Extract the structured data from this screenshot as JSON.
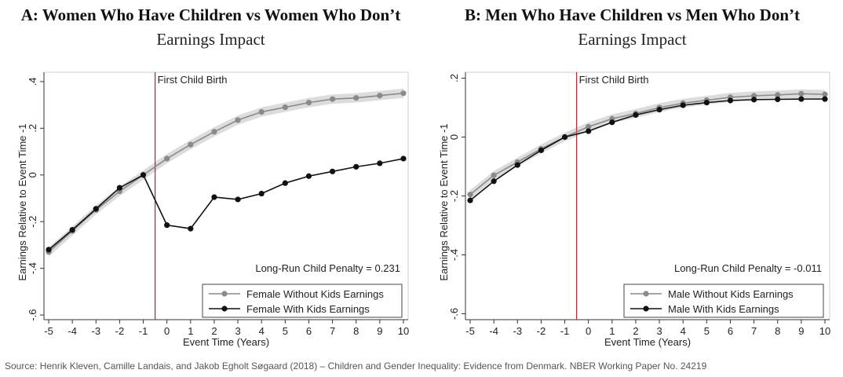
{
  "source_line": "Source: Henrik Kleven, Camille Landais, and Jakob Egholt Søgaard (2018) – Children and Gender Inequality: Evidence from Denmark. NBER Working Paper No. 24219",
  "chart_data": [
    {
      "type": "line",
      "title": "A: Women Who Have Children vs Women Who Don’t",
      "subtitle": "Earnings Impact",
      "xlabel": "Event Time (Years)",
      "ylabel": "Earnings Relative to Event Time -1",
      "x": [
        -5,
        -4,
        -3,
        -2,
        -1,
        0,
        1,
        2,
        3,
        4,
        5,
        6,
        7,
        8,
        9,
        10
      ],
      "xticks": [
        -5,
        -4,
        -3,
        -2,
        -1,
        0,
        1,
        2,
        3,
        4,
        5,
        6,
        7,
        8,
        9,
        10
      ],
      "xlim": [
        -5.2,
        10.2
      ],
      "yticks": [
        0.4,
        0.2,
        0,
        -0.2,
        -0.4,
        -0.6
      ],
      "ytick_labels": [
        ".4",
        ".2",
        "0",
        "-.2",
        "-.4",
        "-.6"
      ],
      "ylim": [
        -0.62,
        0.44
      ],
      "event_line": {
        "x": -0.5,
        "label": "First Child Birth",
        "color": "#b0303a"
      },
      "annotation": "Long-Run Child Penalty = 0.231",
      "legend_position": "bottom-right",
      "series": [
        {
          "name": "Female Without Kids Earnings",
          "color": "#8a8a8a",
          "band": true,
          "band_halfwidth": 0.02,
          "values": [
            -0.33,
            -0.24,
            -0.15,
            -0.07,
            0,
            0.07,
            0.13,
            0.185,
            0.235,
            0.27,
            0.29,
            0.31,
            0.325,
            0.33,
            0.34,
            0.35
          ]
        },
        {
          "name": "Female With Kids Earnings",
          "color": "#111111",
          "band": false,
          "values": [
            -0.32,
            -0.235,
            -0.145,
            -0.055,
            0,
            -0.215,
            -0.23,
            -0.095,
            -0.105,
            -0.08,
            -0.035,
            -0.005,
            0.015,
            0.035,
            0.05,
            0.07
          ]
        }
      ]
    },
    {
      "type": "line",
      "title": "B: Men Who Have Children vs Men Who Don’t",
      "subtitle": "Earnings Impact",
      "xlabel": "Event Time (Years)",
      "ylabel": "Earnings Relative to Event Time -1",
      "x": [
        -5,
        -4,
        -3,
        -2,
        -1,
        0,
        1,
        2,
        3,
        4,
        5,
        6,
        7,
        8,
        9,
        10
      ],
      "xticks": [
        -5,
        -4,
        -3,
        -2,
        -1,
        0,
        1,
        2,
        3,
        4,
        5,
        6,
        7,
        8,
        9,
        10
      ],
      "xlim": [
        -5.2,
        10.2
      ],
      "yticks": [
        0.2,
        0,
        -0.2,
        -0.4,
        -0.6
      ],
      "ytick_labels": [
        ".2",
        "0",
        "-.2",
        "-.4",
        "-.6"
      ],
      "ylim": [
        -0.62,
        0.22
      ],
      "event_line": {
        "x": -0.5,
        "label": "First Child Birth",
        "color": "#b0303a"
      },
      "annotation": "Long-Run Child Penalty = -0.011",
      "legend_position": "bottom-right",
      "series": [
        {
          "name": "Male Without Kids Earnings",
          "color": "#8a8a8a",
          "band": true,
          "band_halfwidth": 0.015,
          "values": [
            -0.195,
            -0.13,
            -0.085,
            -0.04,
            0,
            0.035,
            0.062,
            0.08,
            0.1,
            0.115,
            0.125,
            0.135,
            0.14,
            0.143,
            0.147,
            0.145
          ]
        },
        {
          "name": "Male With Kids Earnings",
          "color": "#111111",
          "band": false,
          "values": [
            -0.215,
            -0.15,
            -0.095,
            -0.045,
            0,
            0.02,
            0.05,
            0.075,
            0.093,
            0.108,
            0.117,
            0.124,
            0.127,
            0.128,
            0.129,
            0.129
          ]
        }
      ]
    }
  ]
}
